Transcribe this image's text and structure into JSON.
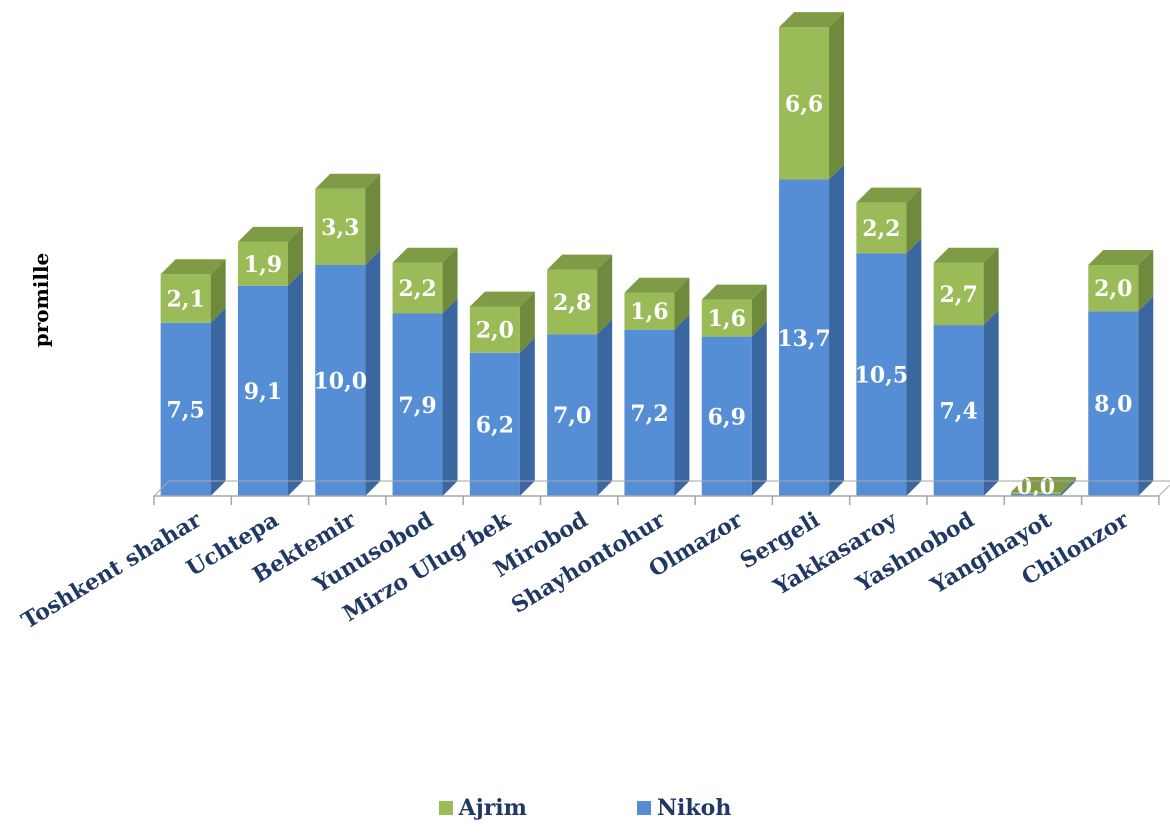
{
  "chart_data": {
    "type": "bar",
    "stacked": true,
    "three_d": true,
    "ylabel": "promille",
    "categories": [
      "Toshkent shahar",
      "Uchtepa",
      "Bektemir",
      "Yunusobod",
      "Mirzo Ulug‘bek",
      "Mirobod",
      "Shayhontohur",
      "Olmazor",
      "Sergeli",
      "Yakkasaroy",
      "Yashnobod",
      "Yangihayot",
      "Chilonzor"
    ],
    "series": [
      {
        "name": "Nikoh",
        "color": "#558ed5",
        "values": [
          7.5,
          9.1,
          10.0,
          7.9,
          6.2,
          7.0,
          7.2,
          6.9,
          13.7,
          10.5,
          7.4,
          0.0,
          8.0
        ],
        "labels": [
          "7,5",
          "9,1",
          "10,0",
          "7,9",
          "6,2",
          "7,0",
          "7,2",
          "6,9",
          "13,7",
          "10,5",
          "7,4",
          "",
          "8,0"
        ]
      },
      {
        "name": "Ajrim",
        "color": "#9bbb59",
        "values": [
          2.1,
          1.9,
          3.3,
          2.2,
          2.0,
          2.8,
          1.6,
          1.6,
          6.6,
          2.2,
          2.7,
          0.0,
          2.0
        ],
        "labels": [
          "2,1",
          "1,9",
          "3,3",
          "2,2",
          "2,0",
          "2,8",
          "1,6",
          "1,6",
          "6,6",
          "2,2",
          "2,7",
          "0,0",
          "2,0"
        ]
      }
    ],
    "legend": {
      "position": "bottom",
      "items": [
        {
          "name": "Ajrim",
          "color": "#9bbb59"
        },
        {
          "name": "Nikoh",
          "color": "#558ed5"
        }
      ]
    },
    "grid": false
  }
}
